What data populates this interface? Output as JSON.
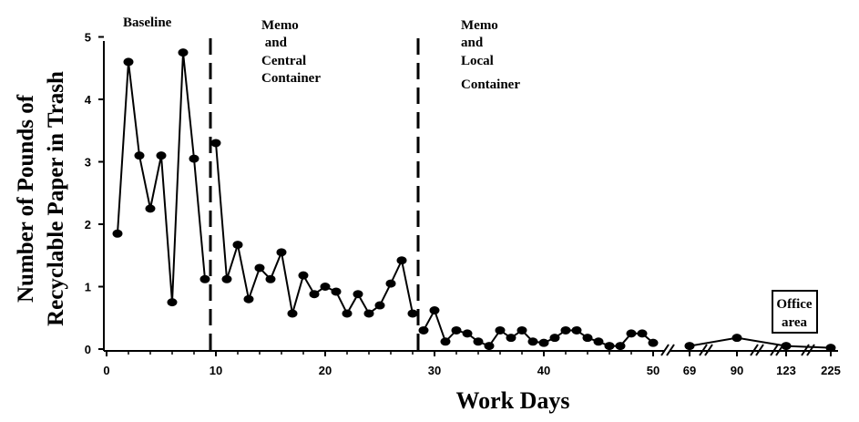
{
  "chart_data": {
    "type": "line",
    "xlabel": "Work Days",
    "ylabel_lines": [
      "Number of Pounds of",
      "Recyclable Paper in Trash"
    ],
    "ylim": [
      0,
      5
    ],
    "y_ticks": [
      "0",
      "1",
      "2",
      "3",
      "4",
      "5"
    ],
    "x_ticks": [
      "0",
      "10",
      "20",
      "30",
      "40",
      "50"
    ],
    "x_break_ticks": [
      "69",
      "90",
      "123",
      "225"
    ],
    "phase_labels": {
      "baseline": "Baseline",
      "central": [
        "Memo",
        " and",
        "Central",
        "Container"
      ],
      "local": [
        "Memo",
        "and",
        "Local",
        "Container"
      ],
      "office": [
        "Office",
        "area"
      ]
    },
    "phase_change_days": [
      9.5,
      28.5
    ],
    "series": [
      {
        "x": [
          1,
          2,
          3,
          4,
          5,
          6,
          7,
          8,
          9,
          10,
          11,
          12,
          13,
          14,
          15,
          16,
          17,
          18,
          19,
          20,
          21,
          22,
          23,
          24,
          25,
          26,
          27,
          28,
          29,
          30,
          31,
          32,
          33,
          34,
          35,
          36,
          37,
          38,
          39,
          40,
          41,
          42,
          43,
          44,
          45,
          46,
          47,
          48,
          49,
          50
        ],
        "values": [
          1.85,
          4.6,
          3.1,
          2.25,
          3.1,
          0.75,
          4.75,
          3.05,
          1.12,
          3.3,
          1.12,
          1.67,
          0.8,
          1.3,
          1.12,
          1.55,
          0.57,
          1.18,
          0.88,
          1.0,
          0.92,
          0.57,
          0.88,
          0.57,
          0.7,
          1.05,
          1.42,
          0.57,
          0.3,
          0.62,
          0.12,
          0.3,
          0.25,
          0.12,
          0.05,
          0.3,
          0.18,
          0.3,
          0.12,
          0.1,
          0.18,
          0.3,
          0.3,
          0.18,
          0.12,
          0.05,
          0.05,
          0.25,
          0.25,
          0.1
        ]
      },
      {
        "x": [
          69,
          90,
          123,
          225
        ],
        "values": [
          0.05,
          0.18,
          0.05,
          0.02
        ]
      }
    ]
  }
}
